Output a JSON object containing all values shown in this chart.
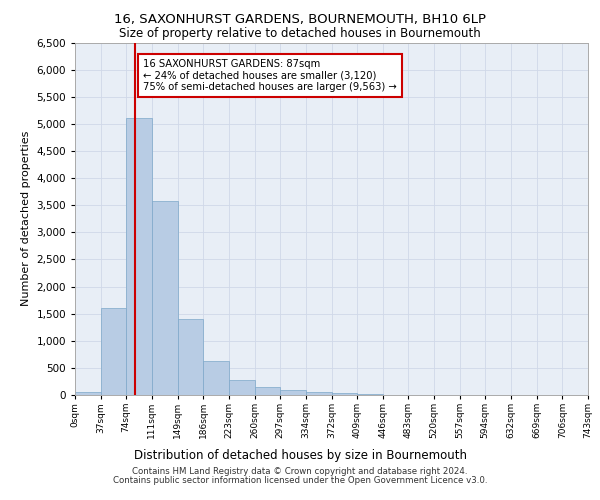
{
  "title_line1": "16, SAXONHURST GARDENS, BOURNEMOUTH, BH10 6LP",
  "title_line2": "Size of property relative to detached houses in Bournemouth",
  "xlabel": "Distribution of detached houses by size in Bournemouth",
  "ylabel": "Number of detached properties",
  "footer_line1": "Contains HM Land Registry data © Crown copyright and database right 2024.",
  "footer_line2": "Contains public sector information licensed under the Open Government Licence v3.0.",
  "bin_labels": [
    "0sqm",
    "37sqm",
    "74sqm",
    "111sqm",
    "149sqm",
    "186sqm",
    "223sqm",
    "260sqm",
    "297sqm",
    "334sqm",
    "372sqm",
    "409sqm",
    "446sqm",
    "483sqm",
    "520sqm",
    "557sqm",
    "594sqm",
    "632sqm",
    "669sqm",
    "706sqm",
    "743sqm"
  ],
  "bar_values": [
    50,
    1600,
    5100,
    3580,
    1400,
    620,
    270,
    140,
    90,
    50,
    30,
    10,
    5,
    0,
    0,
    0,
    0,
    0,
    0,
    0
  ],
  "bar_color": "#b8cce4",
  "bar_edge_color": "#7da7c9",
  "grid_color": "#d0d8e8",
  "bg_color": "#e8eef6",
  "property_line_x": 87,
  "property_line_color": "#cc0000",
  "annotation_text": "16 SAXONHURST GARDENS: 87sqm\n← 24% of detached houses are smaller (3,120)\n75% of semi-detached houses are larger (9,563) →",
  "annotation_box_color": "#ffffff",
  "annotation_box_edge_color": "#cc0000",
  "ylim": [
    0,
    6500
  ],
  "xlim_max": 743,
  "bin_edges": [
    0,
    37,
    74,
    111,
    149,
    186,
    223,
    260,
    297,
    334,
    372,
    409,
    446,
    483,
    520,
    557,
    594,
    632,
    669,
    706,
    743
  ]
}
